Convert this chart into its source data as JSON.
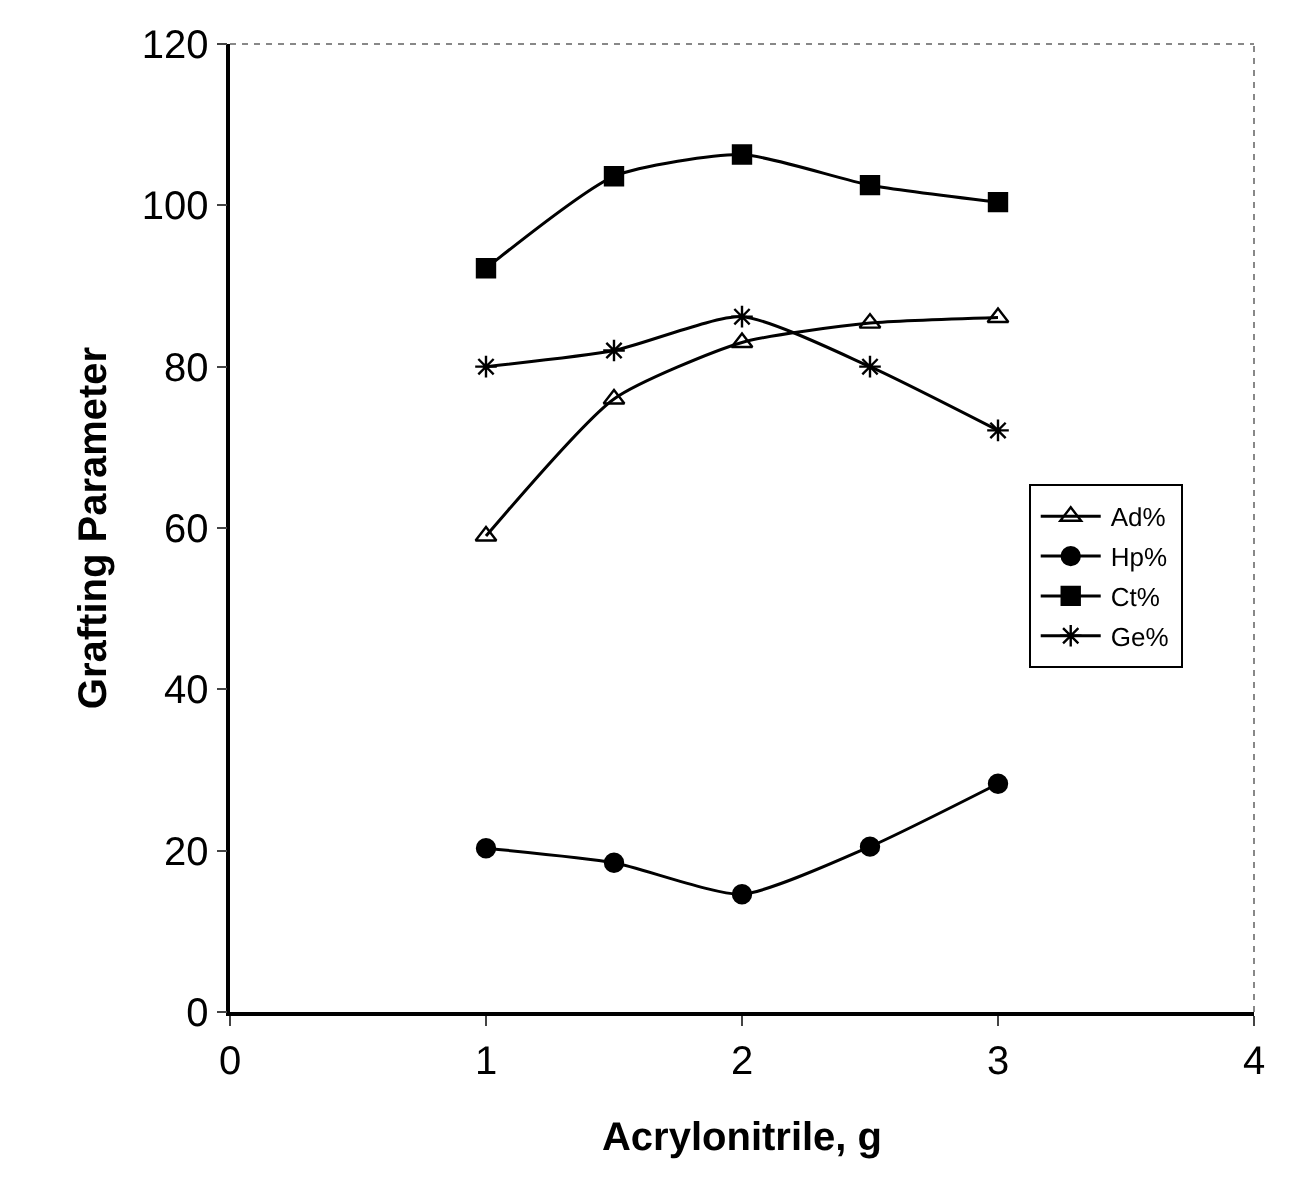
{
  "chart_data": {
    "type": "line",
    "xlabel": "Acrylonitrile, g",
    "ylabel": "Grafting Parameter",
    "x": [
      1,
      1.5,
      2,
      2.5,
      3
    ],
    "series": [
      {
        "name": "Ad%",
        "color": "#000000",
        "marker": "triangle",
        "values": [
          59,
          76,
          83,
          85.4,
          86.1
        ]
      },
      {
        "name": "Hp%",
        "color": "#000000",
        "marker": "circle",
        "values": [
          20.3,
          18.5,
          14.6,
          20.5,
          28.3
        ]
      },
      {
        "name": "Ct%",
        "color": "#000000",
        "marker": "square",
        "values": [
          92.2,
          103.6,
          106.3,
          102.5,
          100.4
        ]
      },
      {
        "name": "Ge%",
        "color": "#000000",
        "marker": "cross",
        "values": [
          80,
          82,
          86.2,
          80,
          72.1
        ]
      }
    ],
    "xlim": [
      0,
      4
    ],
    "xticks": [
      0,
      1,
      2,
      3,
      4
    ],
    "ylim": [
      0,
      120
    ],
    "yticks": [
      0,
      20,
      40,
      60,
      80,
      100,
      120
    ],
    "legend": "right",
    "line_style": "solid"
  }
}
